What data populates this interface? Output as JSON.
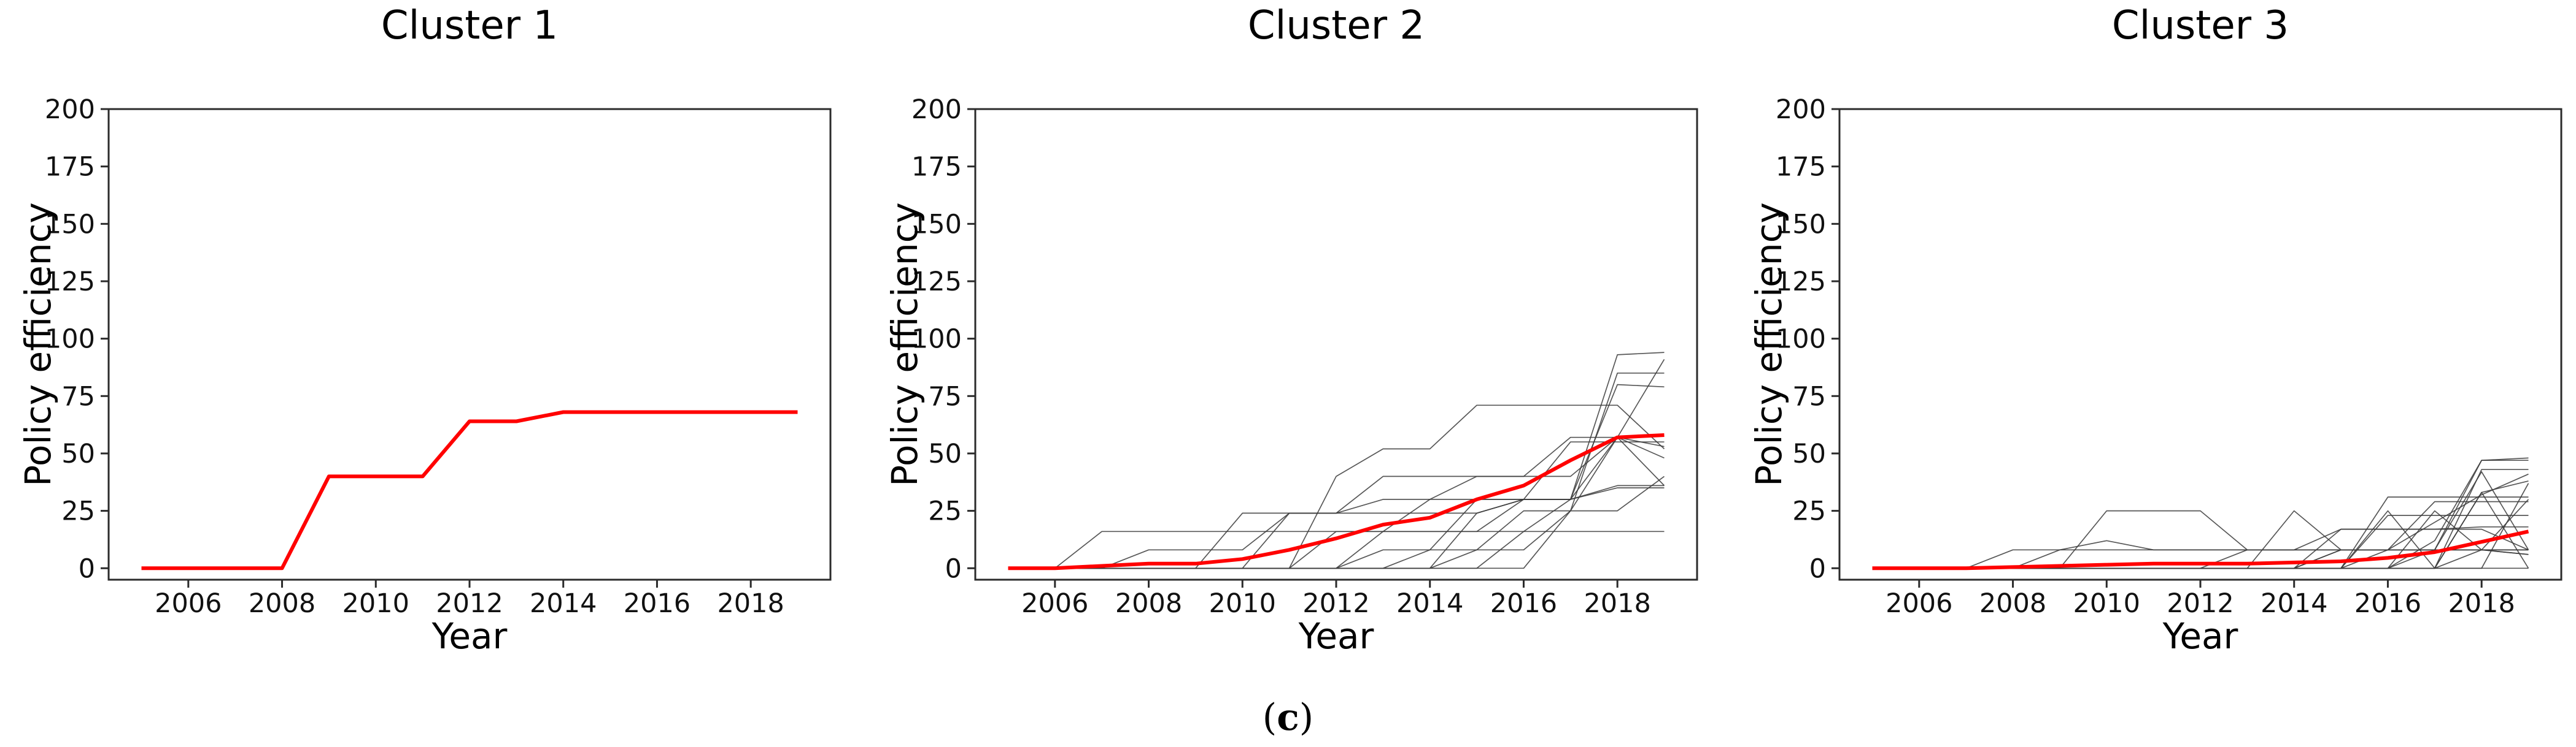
{
  "caption": {
    "open": "(",
    "letter": "c",
    "close": ")"
  },
  "chart_data": [
    {
      "type": "line",
      "title": "Cluster 1",
      "xlabel": "Year",
      "ylabel": "Policy efficiency",
      "x": [
        2005,
        2006,
        2007,
        2008,
        2009,
        2010,
        2011,
        2012,
        2013,
        2014,
        2015,
        2016,
        2017,
        2018,
        2019
      ],
      "xticks": [
        2006,
        2008,
        2010,
        2012,
        2014,
        2016,
        2018
      ],
      "yticks": [
        0,
        25,
        50,
        75,
        100,
        125,
        150,
        175,
        200
      ],
      "xlim": [
        2004.3,
        2019.7
      ],
      "ylim": [
        -5,
        200
      ],
      "grid": false,
      "legend": "none",
      "mean_color": "#ff0000",
      "member_color": "#3a3a3a",
      "mean": [
        0,
        0,
        0,
        0,
        40,
        40,
        40,
        64,
        64,
        68,
        68,
        68,
        68,
        68,
        68
      ],
      "members": []
    },
    {
      "type": "line",
      "title": "Cluster 2",
      "xlabel": "Year",
      "ylabel": "Policy efficiency",
      "x": [
        2005,
        2006,
        2007,
        2008,
        2009,
        2010,
        2011,
        2012,
        2013,
        2014,
        2015,
        2016,
        2017,
        2018,
        2019
      ],
      "xticks": [
        2006,
        2008,
        2010,
        2012,
        2014,
        2016,
        2018
      ],
      "yticks": [
        0,
        25,
        50,
        75,
        100,
        125,
        150,
        175,
        200
      ],
      "xlim": [
        2004.3,
        2019.7
      ],
      "ylim": [
        -5,
        200
      ],
      "grid": false,
      "legend": "none",
      "mean_color": "#ff0000",
      "member_color": "#3a3a3a",
      "mean": [
        0,
        0,
        1,
        2,
        2,
        4,
        8,
        13,
        19,
        22,
        30,
        36,
        47,
        57,
        58
      ],
      "members": [
        [
          0,
          0,
          16,
          16,
          16,
          16,
          16,
          16,
          16,
          16,
          16,
          16,
          16,
          16,
          16
        ],
        [
          0,
          0,
          0,
          8,
          8,
          8,
          24,
          24,
          24,
          24,
          24,
          30,
          30,
          36,
          36
        ],
        [
          0,
          0,
          0,
          0,
          0,
          24,
          24,
          24,
          30,
          30,
          30,
          30,
          30,
          35,
          35
        ],
        [
          0,
          0,
          0,
          0,
          0,
          0,
          24,
          24,
          40,
          40,
          40,
          40,
          57,
          57,
          48
        ],
        [
          0,
          0,
          0,
          0,
          0,
          0,
          0,
          40,
          52,
          52,
          71,
          71,
          71,
          71,
          52
        ],
        [
          0,
          0,
          0,
          0,
          0,
          0,
          0,
          0,
          16,
          16,
          16,
          30,
          30,
          93,
          94
        ],
        [
          0,
          0,
          0,
          0,
          0,
          0,
          0,
          0,
          0,
          8,
          8,
          25,
          25,
          85,
          85
        ],
        [
          0,
          0,
          0,
          0,
          0,
          0,
          0,
          0,
          0,
          0,
          24,
          30,
          30,
          80,
          79
        ],
        [
          0,
          0,
          0,
          0,
          0,
          0,
          0,
          0,
          8,
          8,
          30,
          30,
          55,
          55,
          55
        ],
        [
          0,
          0,
          0,
          0,
          0,
          0,
          0,
          0,
          0,
          0,
          0,
          16,
          30,
          57,
          91
        ],
        [
          0,
          0,
          0,
          0,
          0,
          0,
          0,
          0,
          0,
          0,
          8,
          8,
          25,
          25,
          40
        ],
        [
          0,
          0,
          0,
          0,
          0,
          0,
          0,
          16,
          16,
          30,
          40,
          40,
          40,
          57,
          53
        ],
        [
          0,
          0,
          0,
          0,
          0,
          0,
          0,
          0,
          0,
          0,
          0,
          0,
          25,
          57,
          36
        ]
      ]
    },
    {
      "type": "line",
      "title": "Cluster 3",
      "xlabel": "Year",
      "ylabel": "Policy efficiency",
      "x": [
        2005,
        2006,
        2007,
        2008,
        2009,
        2010,
        2011,
        2012,
        2013,
        2014,
        2015,
        2016,
        2017,
        2018,
        2019
      ],
      "xticks": [
        2006,
        2008,
        2010,
        2012,
        2014,
        2016,
        2018
      ],
      "yticks": [
        0,
        25,
        50,
        75,
        100,
        125,
        150,
        175,
        200
      ],
      "xlim": [
        2004.3,
        2019.7
      ],
      "ylim": [
        -5,
        200
      ],
      "grid": false,
      "legend": "none",
      "mean_color": "#ff0000",
      "member_color": "#3a3a3a",
      "mean": [
        0,
        0,
        0,
        0.5,
        1,
        1.5,
        2,
        2,
        2,
        2.5,
        3,
        4.5,
        7,
        11.5,
        16
      ],
      "members": [
        [
          0,
          0,
          0,
          8,
          8,
          8,
          8,
          8,
          8,
          8,
          8,
          8,
          8,
          8,
          8
        ],
        [
          0,
          0,
          0,
          0,
          8,
          12,
          8,
          8,
          8,
          8,
          8,
          8,
          8,
          8,
          6
        ],
        [
          0,
          0,
          0,
          0,
          0,
          25,
          25,
          25,
          8,
          8,
          8,
          8,
          8,
          8,
          8
        ],
        [
          0,
          0,
          0,
          0,
          0,
          0,
          0,
          0,
          0,
          25,
          8,
          8,
          8,
          8,
          8
        ],
        [
          0,
          0,
          0,
          0,
          0,
          0,
          0,
          0,
          8,
          8,
          17,
          17,
          17,
          18,
          18
        ],
        [
          0,
          0,
          0,
          0,
          0,
          0,
          0,
          0,
          0,
          0,
          17,
          17,
          17,
          17,
          8
        ],
        [
          0,
          0,
          0,
          0,
          0,
          0,
          0,
          0,
          0,
          0,
          0,
          23,
          23,
          23,
          23
        ],
        [
          0,
          0,
          0,
          0,
          0,
          0,
          0,
          0,
          0,
          0,
          0,
          31,
          31,
          31,
          31
        ],
        [
          0,
          0,
          0,
          0,
          0,
          0,
          0,
          0,
          0,
          0,
          8,
          8,
          29,
          29,
          29
        ],
        [
          0,
          0,
          0,
          0,
          0,
          0,
          0,
          0,
          0,
          0,
          0,
          0,
          8,
          47,
          47
        ],
        [
          0,
          0,
          0,
          0,
          0,
          0,
          0,
          0,
          0,
          0,
          0,
          0,
          0,
          43,
          43
        ],
        [
          0,
          0,
          0,
          0,
          0,
          0,
          0,
          0,
          0,
          0,
          0,
          0,
          12,
          47,
          48
        ],
        [
          0,
          0,
          0,
          0,
          0,
          0,
          0,
          0,
          0,
          0,
          0,
          0,
          0,
          0,
          37
        ],
        [
          0,
          0,
          0,
          0,
          0,
          0,
          0,
          0,
          0,
          0,
          0,
          25,
          0,
          33,
          38
        ],
        [
          0,
          0,
          0,
          0,
          0,
          0,
          0,
          0,
          0,
          0,
          0,
          8,
          8,
          42,
          8
        ],
        [
          0,
          0,
          0,
          0,
          0,
          0,
          0,
          0,
          0,
          0,
          0,
          0,
          25,
          8,
          30
        ],
        [
          0,
          0,
          0,
          0,
          0,
          0,
          0,
          0,
          0,
          0,
          0,
          0,
          0,
          8,
          6
        ],
        [
          0,
          0,
          0,
          0,
          0,
          0,
          0,
          0,
          0,
          0,
          0,
          0,
          0,
          0,
          0
        ],
        [
          0,
          0,
          0,
          0,
          0,
          0,
          0,
          0,
          0,
          0,
          8,
          8,
          20,
          32,
          41
        ],
        [
          0,
          0,
          0,
          0,
          0,
          0,
          0,
          0,
          0,
          0,
          0,
          0,
          0,
          33,
          0
        ]
      ]
    }
  ]
}
